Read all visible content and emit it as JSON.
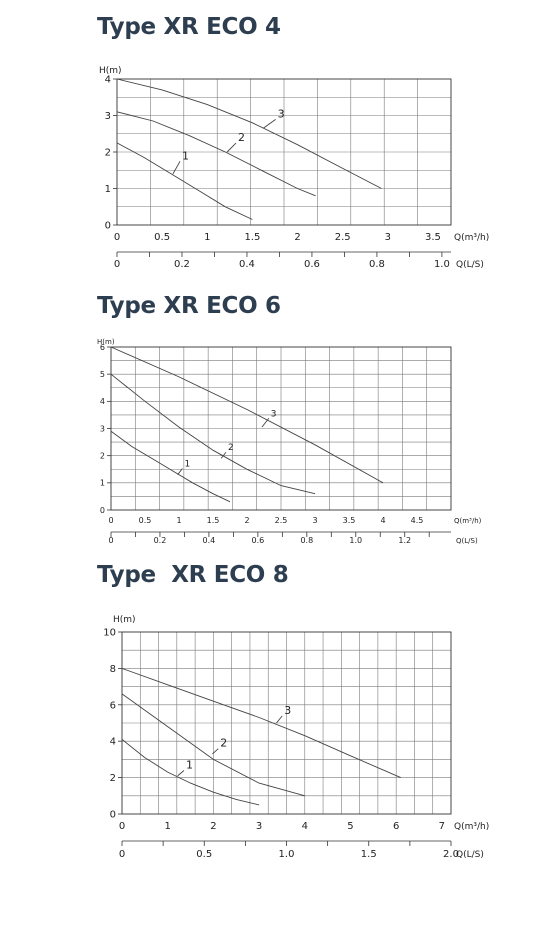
{
  "chart_data": [
    {
      "type": "line",
      "title": "Type XR ECO 4",
      "ylabel": "H(m)",
      "xlabel": "Q(m³/h)",
      "x2label": "Q(L/S)",
      "ylim": [
        0,
        4
      ],
      "xlim": [
        0,
        3.7
      ],
      "x2lim": [
        0,
        1.028
      ],
      "grid": true,
      "y_ticks": [
        "0",
        "1",
        "2",
        "3",
        "4"
      ],
      "y_tick_values": [
        0,
        1,
        2,
        3,
        4
      ],
      "x_ticks": [
        "0",
        "0.5",
        "1",
        "1.5",
        "2",
        "2.5",
        "3",
        "3.5"
      ],
      "x_tick_values": [
        0,
        0.5,
        1,
        1.5,
        2,
        2.5,
        3,
        3.5
      ],
      "x2_ticks": [
        "0",
        "0.2",
        "0.4",
        "0.6",
        "0.8",
        "1.0"
      ],
      "x2_tick_values": [
        0,
        0.2,
        0.4,
        0.6,
        0.8,
        1.0
      ],
      "series": [
        {
          "name": "1",
          "x": [
            0,
            0.3,
            0.6,
            0.9,
            1.2,
            1.5
          ],
          "y": [
            2.25,
            1.85,
            1.4,
            0.95,
            0.5,
            0.15
          ]
        },
        {
          "name": "2",
          "x": [
            0,
            0.4,
            0.8,
            1.2,
            1.6,
            2.0,
            2.2
          ],
          "y": [
            3.1,
            2.85,
            2.45,
            2.0,
            1.5,
            1.0,
            0.8
          ]
        },
        {
          "name": "3",
          "x": [
            0,
            0.5,
            1.0,
            1.5,
            2.0,
            2.5,
            2.93
          ],
          "y": [
            4.0,
            3.7,
            3.3,
            2.8,
            2.2,
            1.55,
            1.0
          ]
        }
      ],
      "labels": [
        {
          "text": "1",
          "x": 0.72,
          "y": 1.8,
          "ax": 0.62,
          "ay": 1.4
        },
        {
          "text": "2",
          "x": 1.34,
          "y": 2.3,
          "ax": 1.22,
          "ay": 2.0
        },
        {
          "text": "3",
          "x": 1.78,
          "y": 2.95,
          "ax": 1.62,
          "ay": 2.65
        }
      ]
    },
    {
      "type": "line",
      "title": "Type XR ECO 6",
      "ylabel": "H(m)",
      "xlabel": "Q(m³/h)",
      "x2label": "Q(L/S)",
      "ylim": [
        0,
        6
      ],
      "xlim": [
        0,
        5.0
      ],
      "x2lim": [
        0,
        1.389
      ],
      "grid": true,
      "y_ticks": [
        "0",
        "1",
        "2",
        "3",
        "4",
        "5",
        "6"
      ],
      "y_tick_values": [
        0,
        1,
        2,
        3,
        4,
        5,
        6
      ],
      "x_ticks": [
        "0",
        "0.5",
        "1",
        "1.5",
        "2",
        "2.5",
        "3",
        "3.5",
        "4",
        "4.5"
      ],
      "x_tick_values": [
        0,
        0.5,
        1,
        1.5,
        2,
        2.5,
        3,
        3.5,
        4,
        4.5
      ],
      "x2_ticks": [
        "0",
        "0.2",
        "0.4",
        "0.6",
        "0.8",
        "1.0",
        "1.2"
      ],
      "x2_tick_values": [
        0,
        0.2,
        0.4,
        0.6,
        0.8,
        1.0,
        1.2
      ],
      "series": [
        {
          "name": "1",
          "x": [
            0,
            0.3,
            0.6,
            0.9,
            1.2,
            1.5,
            1.75
          ],
          "y": [
            2.9,
            2.35,
            1.9,
            1.45,
            1.0,
            0.6,
            0.3
          ]
        },
        {
          "name": "2",
          "x": [
            0,
            0.5,
            1.0,
            1.5,
            2.0,
            2.5,
            3.0
          ],
          "y": [
            5.0,
            4.0,
            3.05,
            2.2,
            1.5,
            0.9,
            0.6
          ]
        },
        {
          "name": "3",
          "x": [
            0,
            1.0,
            2.0,
            3.0,
            4.0
          ],
          "y": [
            6.0,
            4.9,
            3.7,
            2.4,
            1.0
          ]
        }
      ],
      "labels": [
        {
          "text": "1",
          "x": 1.08,
          "y": 1.6,
          "ax": 0.98,
          "ay": 1.3
        },
        {
          "text": "2",
          "x": 1.72,
          "y": 2.2,
          "ax": 1.62,
          "ay": 1.9
        },
        {
          "text": "3",
          "x": 2.35,
          "y": 3.45,
          "ax": 2.22,
          "ay": 3.05
        }
      ]
    },
    {
      "type": "line",
      "title": "Type  XR ECO 8",
      "ylabel": "H(m)",
      "xlabel": "Q(m³/h)",
      "x2label": "Q(L/S)",
      "ylim": [
        0,
        10
      ],
      "xlim": [
        0,
        7.2
      ],
      "x2lim": [
        0,
        2.0
      ],
      "grid": true,
      "y_ticks": [
        "0",
        "2",
        "4",
        "6",
        "8",
        "10"
      ],
      "y_tick_values": [
        0,
        2,
        4,
        6,
        8,
        10
      ],
      "x_ticks": [
        "0",
        "1",
        "2",
        "3",
        "4",
        "5",
        "6",
        "7"
      ],
      "x_tick_values": [
        0,
        1,
        2,
        3,
        4,
        5,
        6,
        7
      ],
      "x2_ticks": [
        "0",
        "0.5",
        "1.0",
        "1.5",
        "2.0"
      ],
      "x2_tick_values": [
        0,
        0.5,
        1.0,
        1.5,
        2.0
      ],
      "series": [
        {
          "name": "1",
          "x": [
            0,
            0.5,
            1.0,
            1.5,
            2.0,
            2.5,
            3.0
          ],
          "y": [
            4.1,
            3.1,
            2.3,
            1.7,
            1.2,
            0.8,
            0.5
          ]
        },
        {
          "name": "2",
          "x": [
            0,
            1.0,
            2.0,
            3.0,
            4.0
          ],
          "y": [
            6.6,
            4.8,
            3.0,
            1.7,
            1.0
          ]
        },
        {
          "name": "3",
          "x": [
            0,
            1.0,
            2.0,
            3.0,
            4.0,
            5.0,
            6.1
          ],
          "y": [
            8.0,
            7.1,
            6.2,
            5.3,
            4.3,
            3.2,
            2.0
          ]
        }
      ],
      "labels": [
        {
          "text": "1",
          "x": 1.4,
          "y": 2.5,
          "ax": 1.22,
          "ay": 2.1
        },
        {
          "text": "2",
          "x": 2.15,
          "y": 3.7,
          "ax": 1.98,
          "ay": 3.3
        },
        {
          "text": "3",
          "x": 3.55,
          "y": 5.5,
          "ax": 3.38,
          "ay": 5.0
        }
      ]
    }
  ]
}
